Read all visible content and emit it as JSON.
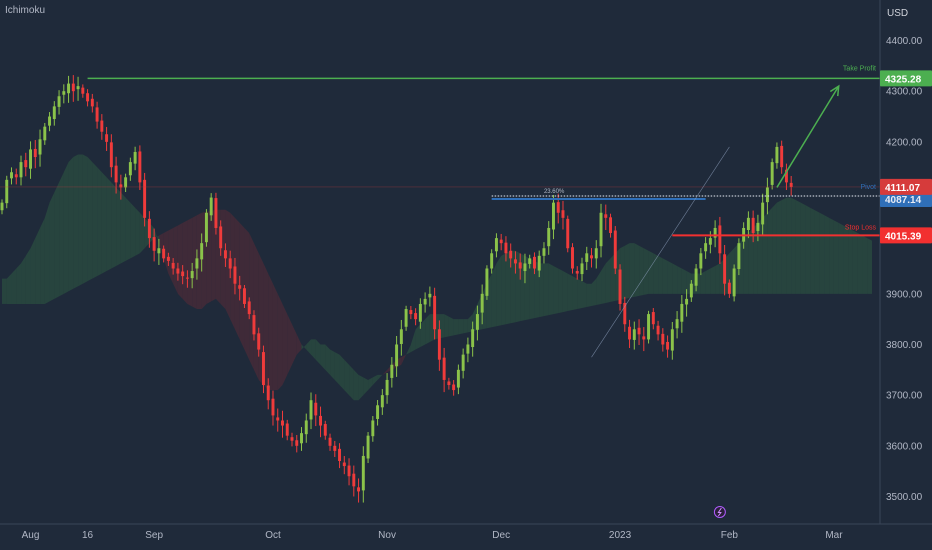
{
  "indicator_label": "Ichimoku",
  "currency": "USD",
  "lines": {
    "take_profit": {
      "label": "Take Profit",
      "value": "4325.28",
      "price": 4325.28
    },
    "entry": {
      "label": "23.60%",
      "value": "4087.14",
      "price": 4087.14
    },
    "stop_loss": {
      "label": "Stop Loss",
      "value": "4015.39",
      "price": 4015.39
    },
    "current": {
      "value": "4111.07",
      "price": 4111.07
    },
    "pivot_label": "Pivot"
  },
  "colors": {
    "background": "#1f2a3a",
    "bull": "#8bc34a",
    "bear": "#ef3b3b",
    "take_profit": "#4caf50",
    "stop_loss": "#f23030",
    "entry": "#2f6fb8",
    "cloud_green": "#2e5a42",
    "cloud_red": "#5a2a36"
  },
  "chart_data": {
    "type": "candlestick",
    "ylim": [
      3420,
      4480
    ],
    "y_ticks": [
      {
        "value": 4400,
        "label": "4400.00"
      },
      {
        "value": 4300,
        "label": "4300.00"
      },
      {
        "value": 4200,
        "label": "4200.00"
      },
      {
        "value": 3900,
        "label": "3900.00"
      },
      {
        "value": 3800,
        "label": "3800.00"
      },
      {
        "value": 3700,
        "label": "3700.00"
      },
      {
        "value": 3600,
        "label": "3600.00"
      },
      {
        "value": 3500,
        "label": "3500.00"
      }
    ],
    "x_labels": [
      {
        "t": 6,
        "label": "Aug"
      },
      {
        "t": 18,
        "label": "16"
      },
      {
        "t": 32,
        "label": "Sep"
      },
      {
        "t": 57,
        "label": "Oct"
      },
      {
        "t": 81,
        "label": "Nov"
      },
      {
        "t": 105,
        "label": "Dec"
      },
      {
        "t": 130,
        "label": "2023"
      },
      {
        "t": 153,
        "label": "Feb"
      },
      {
        "t": 175,
        "label": "Mar"
      }
    ],
    "n_bars": 184,
    "closes": [
      4080,
      4125,
      4140,
      4130,
      4160,
      4150,
      4185,
      4170,
      4205,
      4230,
      4250,
      4270,
      4290,
      4300,
      4315,
      4300,
      4310,
      4295,
      4280,
      4270,
      4240,
      4220,
      4200,
      4150,
      4120,
      4110,
      4130,
      4160,
      4180,
      4120,
      4050,
      4010,
      3985,
      3990,
      3970,
      3965,
      3950,
      3940,
      3935,
      3930,
      3945,
      3970,
      4000,
      4060,
      4090,
      4030,
      3990,
      3970,
      3950,
      3920,
      3910,
      3880,
      3860,
      3820,
      3790,
      3720,
      3690,
      3660,
      3650,
      3640,
      3620,
      3610,
      3600,
      3625,
      3650,
      3690,
      3660,
      3640,
      3620,
      3600,
      3590,
      3570,
      3560,
      3540,
      3520,
      3510,
      3580,
      3620,
      3650,
      3680,
      3700,
      3730,
      3760,
      3800,
      3830,
      3870,
      3860,
      3850,
      3880,
      3890,
      3900,
      3830,
      3770,
      3730,
      3720,
      3710,
      3750,
      3780,
      3800,
      3830,
      3860,
      3900,
      3950,
      3980,
      4010,
      4000,
      3980,
      3970,
      3960,
      3950,
      3960,
      3970,
      3950,
      3975,
      3990,
      4030,
      4080,
      4060,
      4050,
      3990,
      3950,
      3940,
      3960,
      3980,
      3970,
      3990,
      4060,
      4050,
      4020,
      3950,
      3880,
      3840,
      3810,
      3830,
      3820,
      3810,
      3860,
      3840,
      3820,
      3800,
      3790,
      3830,
      3850,
      3880,
      3890,
      3920,
      3950,
      3980,
      4000,
      4010,
      4030,
      3980,
      3920,
      3900,
      3950,
      4000,
      4030,
      4050,
      4020,
      4040,
      4080,
      4110,
      4160,
      4190,
      4150,
      4120,
      4111
    ],
    "cloud_a": [
      3930,
      3930,
      3940,
      3950,
      3960,
      3975,
      3990,
      4010,
      4030,
      4050,
      4080,
      4100,
      4120,
      4140,
      4160,
      4170,
      4175,
      4175,
      4170,
      4160,
      4150,
      4140,
      4130,
      4120,
      4110,
      4100,
      4090,
      4080,
      4070,
      4060,
      4050,
      4040,
      4030,
      4000,
      3970,
      3940,
      3920,
      3900,
      3890,
      3880,
      3875,
      3870,
      3870,
      3880,
      3885,
      3890,
      3880,
      3870,
      3850,
      3830,
      3810,
      3790,
      3770,
      3750,
      3730,
      3720,
      3710,
      3710,
      3710,
      3720,
      3740,
      3760,
      3780,
      3790,
      3800,
      3810,
      3810,
      3800,
      3800,
      3790,
      3785,
      3780,
      3770,
      3760,
      3750,
      3740,
      3735,
      3730,
      3735,
      3740,
      3740,
      3745,
      3750,
      3755,
      3760,
      3780,
      3800,
      3830,
      3840,
      3850,
      3860,
      3860,
      3860,
      3860,
      3855,
      3850,
      3850,
      3850,
      3850,
      3860,
      3880,
      3900,
      3920,
      3940,
      3960,
      3975,
      3980,
      3985,
      3985,
      3980,
      3975,
      3970,
      3965,
      3960,
      3960,
      3960,
      3955,
      3950,
      3945,
      3940,
      3935,
      3930,
      3925,
      3920,
      3920,
      3930,
      3945,
      3960,
      3970,
      3980,
      3990,
      3995,
      4000,
      4000,
      3995,
      3990,
      3985,
      3980,
      3975,
      3970,
      3965,
      3960,
      3955,
      3950,
      3945,
      3940,
      3940,
      3940,
      3945,
      3950,
      3955,
      3960,
      3970,
      3980,
      3990,
      4000,
      4010,
      4020,
      4030,
      4040,
      4050,
      4060,
      4070,
      4080,
      4085,
      4090,
      4090,
      4085,
      4080,
      4075,
      4070,
      4065,
      4060,
      4055,
      4050,
      4045,
      4040,
      4035,
      4030,
      4025,
      4020,
      4015,
      4010,
      4005
    ],
    "cloud_b": [
      3880,
      3880,
      3880,
      3880,
      3880,
      3880,
      3880,
      3880,
      3880,
      3880,
      3885,
      3890,
      3895,
      3900,
      3905,
      3910,
      3915,
      3920,
      3925,
      3930,
      3935,
      3940,
      3945,
      3950,
      3955,
      3960,
      3965,
      3970,
      3975,
      3980,
      3990,
      4000,
      4010,
      4015,
      4020,
      4025,
      4030,
      4035,
      4040,
      4045,
      4050,
      4055,
      4060,
      4062,
      4064,
      4066,
      4066,
      4066,
      4060,
      4050,
      4040,
      4030,
      4020,
      4000,
      3980,
      3960,
      3940,
      3920,
      3900,
      3880,
      3860,
      3840,
      3820,
      3800,
      3790,
      3780,
      3770,
      3760,
      3750,
      3740,
      3730,
      3720,
      3710,
      3700,
      3690,
      3690,
      3700,
      3710,
      3720,
      3730,
      3740,
      3750,
      3760,
      3770,
      3775,
      3780,
      3785,
      3790,
      3795,
      3800,
      3805,
      3810,
      3812,
      3814,
      3816,
      3818,
      3820,
      3822,
      3824,
      3826,
      3828,
      3830,
      3832,
      3834,
      3836,
      3838,
      3840,
      3842,
      3844,
      3846,
      3848,
      3850,
      3852,
      3854,
      3856,
      3858,
      3860,
      3862,
      3864,
      3866,
      3868,
      3870,
      3872,
      3874,
      3876,
      3878,
      3880,
      3882,
      3884,
      3886,
      3888,
      3890,
      3892,
      3894,
      3896,
      3898,
      3900,
      3900,
      3900,
      3900,
      3900,
      3900,
      3900,
      3900,
      3900,
      3900,
      3900,
      3900,
      3900,
      3900,
      3900,
      3900,
      3900,
      3900,
      3900,
      3900,
      3900,
      3900,
      3900,
      3900,
      3900,
      3900,
      3900,
      3900,
      3900,
      3900,
      3900,
      3900,
      3900,
      3900,
      3900,
      3900,
      3900,
      3900,
      3900,
      3900,
      3900,
      3900,
      3900,
      3900,
      3900,
      3900,
      3900,
      3900
    ],
    "take_profit_start_t": 18,
    "entry_start_t": 103,
    "stop_loss_start_t": 141,
    "arrow": {
      "from": [
        163,
        4110
      ],
      "to": [
        176,
        4310
      ]
    }
  }
}
